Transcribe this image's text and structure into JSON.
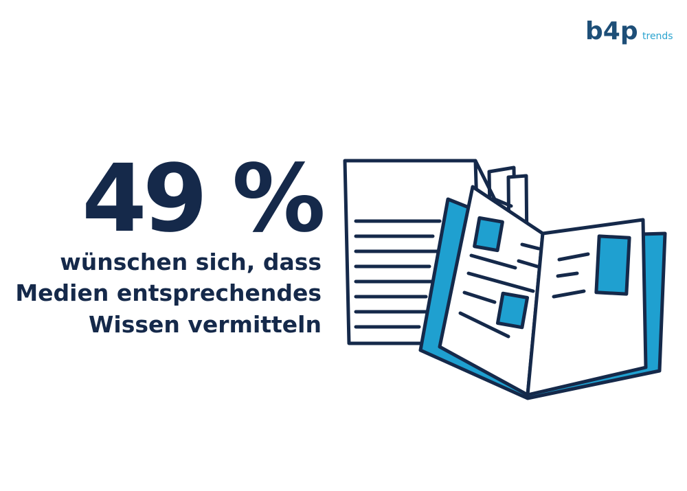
{
  "logo": {
    "brand": "b4p",
    "tagline": "trends"
  },
  "stat": {
    "value": "49 %",
    "lines": [
      "wünschen sich, dass",
      "Medien entsprechendes",
      "Wissen vermitteln"
    ]
  }
}
